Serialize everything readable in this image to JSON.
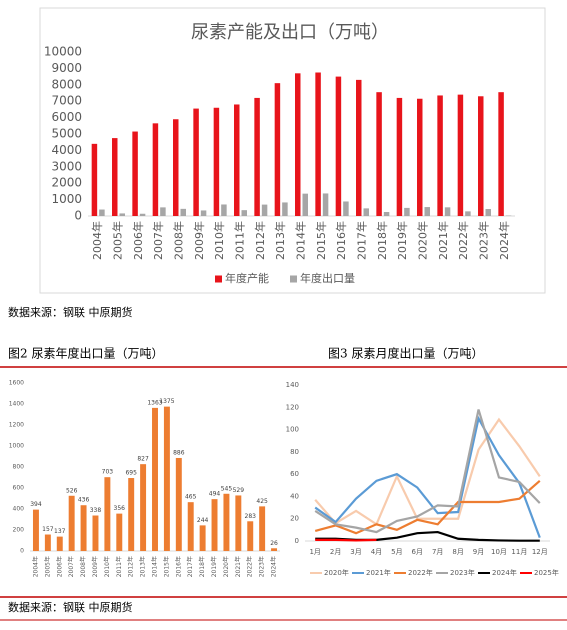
{
  "chart_data": [
    {
      "type": "bar",
      "title": "尿素产能及出口（万吨）",
      "categories": [
        "2004年",
        "2005年",
        "2006年",
        "2007年",
        "2008年",
        "2009年",
        "2010年",
        "2011年",
        "2012年",
        "2013年",
        "2014年",
        "2015年",
        "2016年",
        "2017年",
        "2018年",
        "2019年",
        "2020年",
        "2021年",
        "2022年",
        "2023年",
        "2024年"
      ],
      "series": [
        {
          "name": "年度产能",
          "color": "#e8141b",
          "values": [
            4400,
            4750,
            5150,
            5650,
            5900,
            6550,
            6600,
            6800,
            7200,
            8100,
            8700,
            8750,
            8500,
            8300,
            7550,
            7200,
            7150,
            7350,
            7400,
            7300,
            7550
          ]
        },
        {
          "name": "年度出口量",
          "color": "#a6a6a6",
          "values": [
            394,
            157,
            137,
            526,
            436,
            338,
            703,
            356,
            695,
            827,
            1363,
            1375,
            886,
            465,
            244,
            494,
            545,
            529,
            283,
            425,
            26
          ]
        }
      ],
      "ylim": [
        0,
        10000
      ],
      "yticks": [
        0,
        1000,
        2000,
        3000,
        4000,
        5000,
        6000,
        7000,
        8000,
        9000,
        10000
      ],
      "legend": "bottom"
    },
    {
      "type": "bar",
      "title": "图2 尿素年度出口量（万吨）",
      "categories": [
        "2004年",
        "2005年",
        "2006年",
        "2007年",
        "2008年",
        "2009年",
        "2010年",
        "2011年",
        "2012年",
        "2013年",
        "2014年",
        "2015年",
        "2016年",
        "2017年",
        "2018年",
        "2019年",
        "2020年",
        "2021年",
        "2022年",
        "2023年",
        "2024年"
      ],
      "series": [
        {
          "name": null,
          "color": "#ed7d31",
          "values": [
            394,
            157,
            137,
            526,
            436,
            338,
            703,
            356,
            695,
            827,
            1363,
            1375,
            886,
            465,
            244,
            494,
            545,
            529,
            283,
            425,
            26
          ]
        }
      ],
      "ylim": [
        0,
        1600
      ],
      "yticks": [
        0,
        200,
        400,
        600,
        800,
        1000,
        1200,
        1400,
        1600
      ],
      "data_labels": true
    },
    {
      "type": "line",
      "title": "图3 尿素月度出口量（万吨）",
      "categories": [
        "1月",
        "2月",
        "3月",
        "4月",
        "5月",
        "6月",
        "7月",
        "8月",
        "9月",
        "10月",
        "11月",
        "12月"
      ],
      "series": [
        {
          "name": "2020年",
          "color": "#f8cbad",
          "values": [
            37,
            16,
            27,
            15,
            58,
            20,
            20,
            20,
            82,
            109,
            85,
            58
          ]
        },
        {
          "name": "2021年",
          "color": "#5b9bd5",
          "values": [
            30,
            17,
            38,
            54,
            60,
            48,
            25,
            26,
            110,
            77,
            52,
            3
          ]
        },
        {
          "name": "2022年",
          "color": "#ed7d31",
          "values": [
            9,
            14,
            7,
            15,
            10,
            19,
            15,
            35,
            35,
            35,
            38,
            54
          ]
        },
        {
          "name": "2023年",
          "color": "#a5a5a5",
          "values": [
            27,
            15,
            12,
            8,
            18,
            22,
            32,
            31,
            118,
            57,
            53,
            34
          ]
        },
        {
          "name": "2024年",
          "color": "#000000",
          "values": [
            2,
            2,
            1,
            1,
            3,
            7,
            8,
            2,
            1,
            0.5,
            0.3,
            0.3
          ]
        },
        {
          "name": "2025年",
          "color": "#ff0000",
          "values": [
            1,
            1,
            0.5,
            1,
            null,
            null,
            null,
            null,
            null,
            null,
            null,
            null
          ]
        }
      ],
      "ylim": [
        0,
        140
      ],
      "yticks": [
        0,
        20,
        40,
        60,
        80,
        100,
        120,
        140
      ],
      "legend": "bottom"
    }
  ],
  "source_top": "数据来源：钢联  中原期货",
  "source_bottom": "数据来源：钢联  中原期货"
}
